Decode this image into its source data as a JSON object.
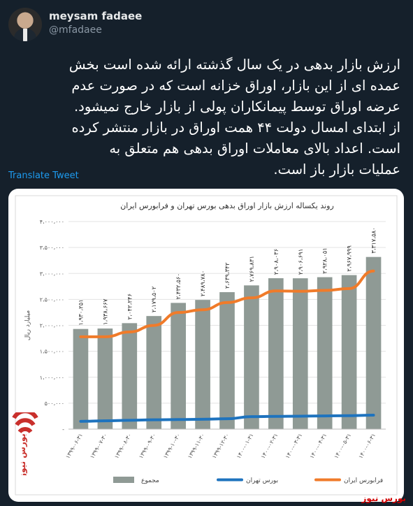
{
  "user": {
    "name": "meysam fadaee",
    "handle": "@mfadaee"
  },
  "tweet": {
    "lines": [
      "ارزش بازار بدهی در یک سال گذشته ارائه شده است بخش",
      "عمده ای از این بازار، اوراق خزانه است که در صورت عدم",
      "عرضه اوراق توسط پیمانکاران پولی از بازار خارج نمیشود.",
      "از ابتدای امسال دولت ۴۴ همت اوراق در بازار منتشر کرده",
      "است. اعداد بالای معاملات اوراق بدهی هم متعلق به",
      "عملیات بازار باز است."
    ],
    "translate_label": "Translate Tweet"
  },
  "watermark": "بورس نیوز",
  "colors": {
    "bar": "#8f9a95",
    "tehran": "#1e73be",
    "farabourse": "#f07b2a"
  },
  "chart_data": {
    "type": "bar",
    "title": "روند یکساله ارزش بازار اوراق بدهی بورس تهران و فرابورس ایران",
    "ylabel": "میلیارد ریال",
    "ylim": [
      0,
      4000000
    ],
    "yticks": [
      "۴،۰۰۰،۰۰۰",
      "۳،۵۰۰،۰۰۰",
      "۳،۰۰۰،۰۰۰",
      "۲،۵۰۰،۰۰۰",
      "۲،۰۰۰،۰۰۰",
      "۱،۵۰۰،۰۰۰",
      "۱،۰۰۰،۰۰۰",
      "۵۰۰،۰۰۰",
      "-"
    ],
    "categories": [
      "۱۳۹۹-۰۶-۳۱",
      "۱۳۹۹-۰۷-۳۰",
      "۱۳۹۹-۰۸-۳۰",
      "۱۳۹۹-۰۹-۳۰",
      "۱۳۹۹-۱۰-۳۰",
      "۱۳۹۹-۱۱-۳۰",
      "۱۳۹۹-۱۲-۳۰",
      "۱۴۰۰-۰۱-۳۱",
      "۱۴۰۰-۰۲-۳۱",
      "۱۴۰۰-۰۳-۳۱",
      "۱۴۰۰-۰۴-۳۱",
      "۱۴۰۰-۰۵-۳۱",
      "۱۴۰۰-۰۶-۳۱"
    ],
    "bar_labels": [
      "۱،۹۳۰،۲۵۱",
      "۱،۹۳۸،۶۶۷",
      "۲،۰۴۲،۲۴۶",
      "۲،۱۷۹،۵۰۲",
      "۲،۴۳۲،۵۶۰",
      "۲،۴۸۹،۷۸۰",
      "۲،۶۳۹،۳۴۲",
      "۲،۷۶۹،۸۳۱",
      "۲،۹۰۸،۰۳۶",
      "۲،۹۰۶،۶۹۱",
      "۲،۹۲۸،۰۵۱",
      "۲،۹۶۷،۹۹۹",
      "۳،۳۱۷،۵۸۰"
    ],
    "series": [
      {
        "name": "مجموع",
        "kind": "bar",
        "values": [
          1930251,
          1938667,
          2042246,
          2179502,
          2432560,
          2489780,
          2639342,
          2769831,
          2908036,
          2906691,
          2928051,
          2967999,
          3317580
        ]
      },
      {
        "name": "بورس تهران",
        "kind": "line",
        "values": [
          150000,
          160000,
          170000,
          180000,
          185000,
          190000,
          200000,
          240000,
          245000,
          250000,
          255000,
          260000,
          270000
        ]
      },
      {
        "name": "فرابورس ایران",
        "kind": "line",
        "values": [
          1780000,
          1779000,
          1872000,
          1999000,
          2247000,
          2300000,
          2439000,
          2530000,
          2663000,
          2657000,
          2673000,
          2708000,
          3047000
        ]
      }
    ],
    "legend": [
      "مجموع",
      "بورس تهران",
      "فرابورس ایران"
    ],
    "legend_position": "bottom",
    "grid": true
  }
}
